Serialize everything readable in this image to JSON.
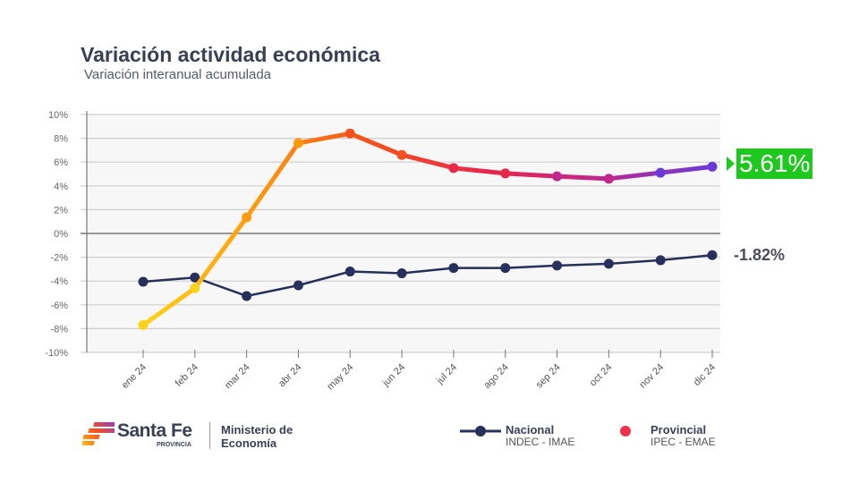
{
  "title": "Variación actividad económica",
  "subtitle": "Variación interanual acumulada",
  "chart_data": {
    "type": "line",
    "categories": [
      "ene 24",
      "feb 24",
      "mar 24",
      "abr 24",
      "may 24",
      "jun 24",
      "jul 24",
      "ago 24",
      "sep 24",
      "oct 24",
      "nov 24",
      "dic 24"
    ],
    "ylim": [
      -10,
      10
    ],
    "yticks": [
      "10%",
      "8%",
      "6%",
      "4%",
      "2%",
      "0%",
      "-2%",
      "-4%",
      "-6%",
      "-8%",
      "-10%"
    ],
    "grid": true,
    "legend_position": "bottom-right",
    "series": [
      {
        "name": "Nacional",
        "source": "INDEC - IMAE",
        "color": "#27305a",
        "values": [
          -4.06,
          -3.7,
          -5.26,
          -4.36,
          -3.2,
          -3.35,
          -2.9,
          -2.9,
          -2.7,
          -2.55,
          -2.25,
          -1.82
        ],
        "end_label": "-1.82%"
      },
      {
        "name": "Provincial",
        "source": "IPEC - EMAE",
        "colors": [
          "#ffd21a",
          "#ff9a10",
          "#f5501e",
          "#e8284a",
          "#c0288c",
          "#6a3ad8"
        ],
        "values": [
          -7.7,
          -4.6,
          1.35,
          7.6,
          8.4,
          6.6,
          5.5,
          5.05,
          4.8,
          4.6,
          5.1,
          5.61
        ],
        "end_label": "5.61%",
        "end_label_color": "#1ec81e"
      }
    ]
  },
  "footer": {
    "brand": "Santa Fe",
    "brand_sub": "PROVINCIA",
    "ministry": "Ministerio de Economía"
  }
}
